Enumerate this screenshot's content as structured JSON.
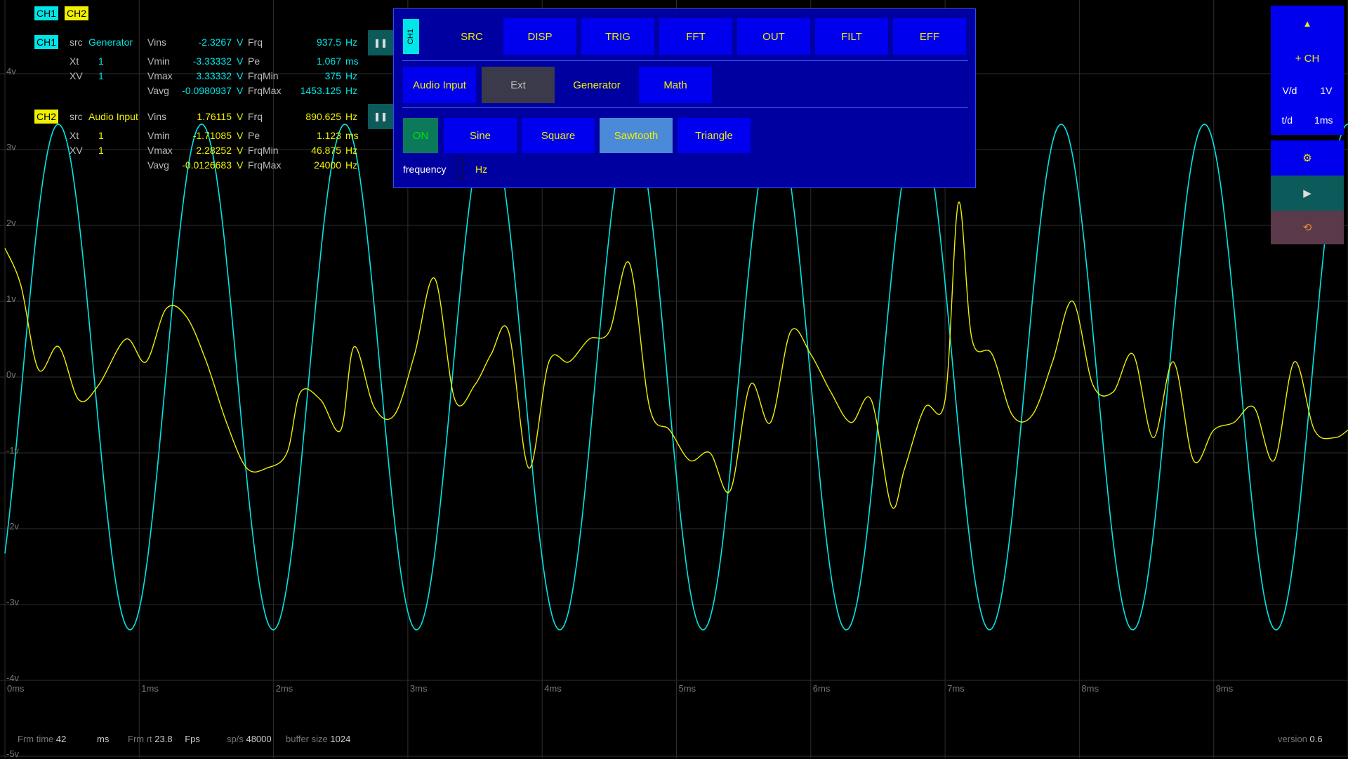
{
  "channels": {
    "ch1_tag": "CH1",
    "ch2_tag": "CH2"
  },
  "measurements": {
    "ch1": {
      "tag": "CH1",
      "src_label": "src",
      "src_value": "Generator",
      "vins_label": "Vins",
      "vins_value": "-2.3267",
      "vins_unit": "V",
      "frq_label": "Frq",
      "frq_value": "937.5",
      "frq_unit": "Hz",
      "xt_label": "Xt",
      "xt_value": "1",
      "vmin_label": "Vmin",
      "vmin_value": "-3.33332",
      "vmin_unit": "V",
      "pe_label": "Pe",
      "pe_value": "1.067",
      "pe_unit": "ms",
      "xv_label": "XV",
      "xv_value": "1",
      "vmax_label": "Vmax",
      "vmax_value": "3.33332",
      "vmax_unit": "V",
      "frqmin_label": "FrqMin",
      "frqmin_value": "375",
      "frqmin_unit": "Hz",
      "vavg_label": "Vavg",
      "vavg_value": "-0.0980937",
      "vavg_unit": "V",
      "frqmax_label": "FrqMax",
      "frqmax_value": "1453.125",
      "frqmax_unit": "Hz",
      "pause_icon": "pause-icon"
    },
    "ch2": {
      "tag": "CH2",
      "src_label": "src",
      "src_value": "Audio Input",
      "vins_label": "Vins",
      "vins_value": "1.76115",
      "vins_unit": "V",
      "frq_label": "Frq",
      "frq_value": "890.625",
      "frq_unit": "Hz",
      "xt_label": "Xt",
      "xt_value": "1",
      "vmin_label": "Vmin",
      "vmin_value": "-1.71085",
      "vmin_unit": "V",
      "pe_label": "Pe",
      "pe_value": "1.123",
      "pe_unit": "ms",
      "xv_label": "XV",
      "xv_value": "1",
      "vmax_label": "Vmax",
      "vmax_value": "2.28252",
      "vmax_unit": "V",
      "frqmin_label": "FrqMin",
      "frqmin_value": "46.875",
      "frqmin_unit": "Hz",
      "vavg_label": "Vavg",
      "vavg_value": "-0.0126683",
      "vavg_unit": "V",
      "frqmax_label": "FrqMax",
      "frqmax_value": "24000",
      "frqmax_unit": "Hz",
      "pause_icon": "pause-icon"
    }
  },
  "panel": {
    "channel_tab": "CH1",
    "tabs": [
      "SRC",
      "DISP",
      "TRIG",
      "FFT",
      "OUT",
      "FILT",
      "EFF"
    ],
    "sources": [
      "Audio Input",
      "Ext",
      "Generator",
      "Math"
    ],
    "on_label": "ON",
    "waveforms": [
      "Sine",
      "Square",
      "Sawtooth",
      "Triangle"
    ],
    "selected_waveform": "Sawtooth",
    "frequency_label": "frequency",
    "frequency_value": "",
    "frequency_unit": "Hz"
  },
  "sidebar": {
    "up_icon": "▲",
    "add_channel": "+ CH",
    "vd_label": "V/d",
    "vd_value": "1V",
    "td_label": "t/d",
    "td_value": "1ms",
    "settings_icon": "⚙",
    "play_icon": "▶",
    "reset_icon": "⟲"
  },
  "axes": {
    "y_labels": [
      "4v",
      "3v",
      "2v",
      "1v",
      "0v",
      "-1v",
      "-2v",
      "-3v",
      "-4v",
      "-5v"
    ],
    "x_labels": [
      "0ms",
      "1ms",
      "2ms",
      "3ms",
      "4ms",
      "5ms",
      "6ms",
      "7ms",
      "8ms",
      "9ms"
    ]
  },
  "colors": {
    "ch1": "#00e6e6",
    "ch2": "#f0f000",
    "panel_bg": "#0000a0",
    "button_bg": "#0000ee"
  },
  "status": {
    "frm_time_label": "Frm time",
    "frm_time_value": "42",
    "frm_time_unit": "ms",
    "frm_rt_label": "Frm rt",
    "frm_rt_value": "23.8",
    "frm_rt_unit": "Fps",
    "sps_label": "sp/s",
    "sps_value": "48000",
    "buffer_label": "buffer size",
    "buffer_value": "1024",
    "version_label": "version",
    "version_value": "0.6"
  },
  "chart_data": {
    "type": "line",
    "xlabel": "",
    "ylabel": "",
    "x_unit": "ms",
    "y_unit": "V",
    "xlim": [
      0,
      10
    ],
    "ylim": [
      -5,
      5
    ],
    "grid": true,
    "series": [
      {
        "name": "CH1",
        "color": "#00e6e6",
        "waveform": "sine",
        "frequency_hz": 937.5,
        "amplitude_v": 3.33332,
        "phase_at_0ms_v": -2.3267
      },
      {
        "name": "CH2",
        "color": "#f0f000",
        "waveform": "audio",
        "x": [
          0,
          0.12,
          0.25,
          0.4,
          0.55,
          0.7,
          0.9,
          1.05,
          1.2,
          1.35,
          1.5,
          1.65,
          1.8,
          1.95,
          2.1,
          2.2,
          2.35,
          2.5,
          2.6,
          2.75,
          2.9,
          3.05,
          3.2,
          3.35,
          3.5,
          3.62,
          3.75,
          3.9,
          4.05,
          4.2,
          4.35,
          4.5,
          4.65,
          4.8,
          4.95,
          5.1,
          5.25,
          5.4,
          5.55,
          5.7,
          5.85,
          6.0,
          6.15,
          6.3,
          6.45,
          6.6,
          6.7,
          6.85,
          7.0,
          7.1,
          7.2,
          7.35,
          7.5,
          7.65,
          7.8,
          7.95,
          8.1,
          8.25,
          8.4,
          8.55,
          8.7,
          8.85,
          9.0,
          9.15,
          9.3,
          9.45,
          9.6,
          9.75,
          9.9,
          10.0
        ],
        "y": [
          1.7,
          1.2,
          0.1,
          0.4,
          -0.3,
          -0.1,
          0.5,
          0.2,
          0.9,
          0.8,
          0.2,
          -0.6,
          -1.2,
          -1.2,
          -1.0,
          -0.2,
          -0.3,
          -0.7,
          0.4,
          -0.4,
          -0.5,
          0.3,
          1.3,
          -0.3,
          -0.1,
          0.3,
          0.6,
          -1.2,
          0.2,
          0.2,
          0.5,
          0.6,
          1.5,
          -0.4,
          -0.7,
          -1.1,
          -1.0,
          -1.5,
          -0.1,
          -0.6,
          0.6,
          0.3,
          -0.2,
          -0.6,
          -0.3,
          -1.7,
          -1.2,
          -0.4,
          -0.3,
          2.3,
          0.5,
          0.3,
          -0.5,
          -0.5,
          0.2,
          1.0,
          -0.1,
          -0.2,
          0.3,
          -0.8,
          0.2,
          -1.1,
          -0.7,
          -0.6,
          -0.4,
          -1.1,
          0.2,
          -0.7,
          -0.8,
          -0.7
        ]
      }
    ]
  }
}
